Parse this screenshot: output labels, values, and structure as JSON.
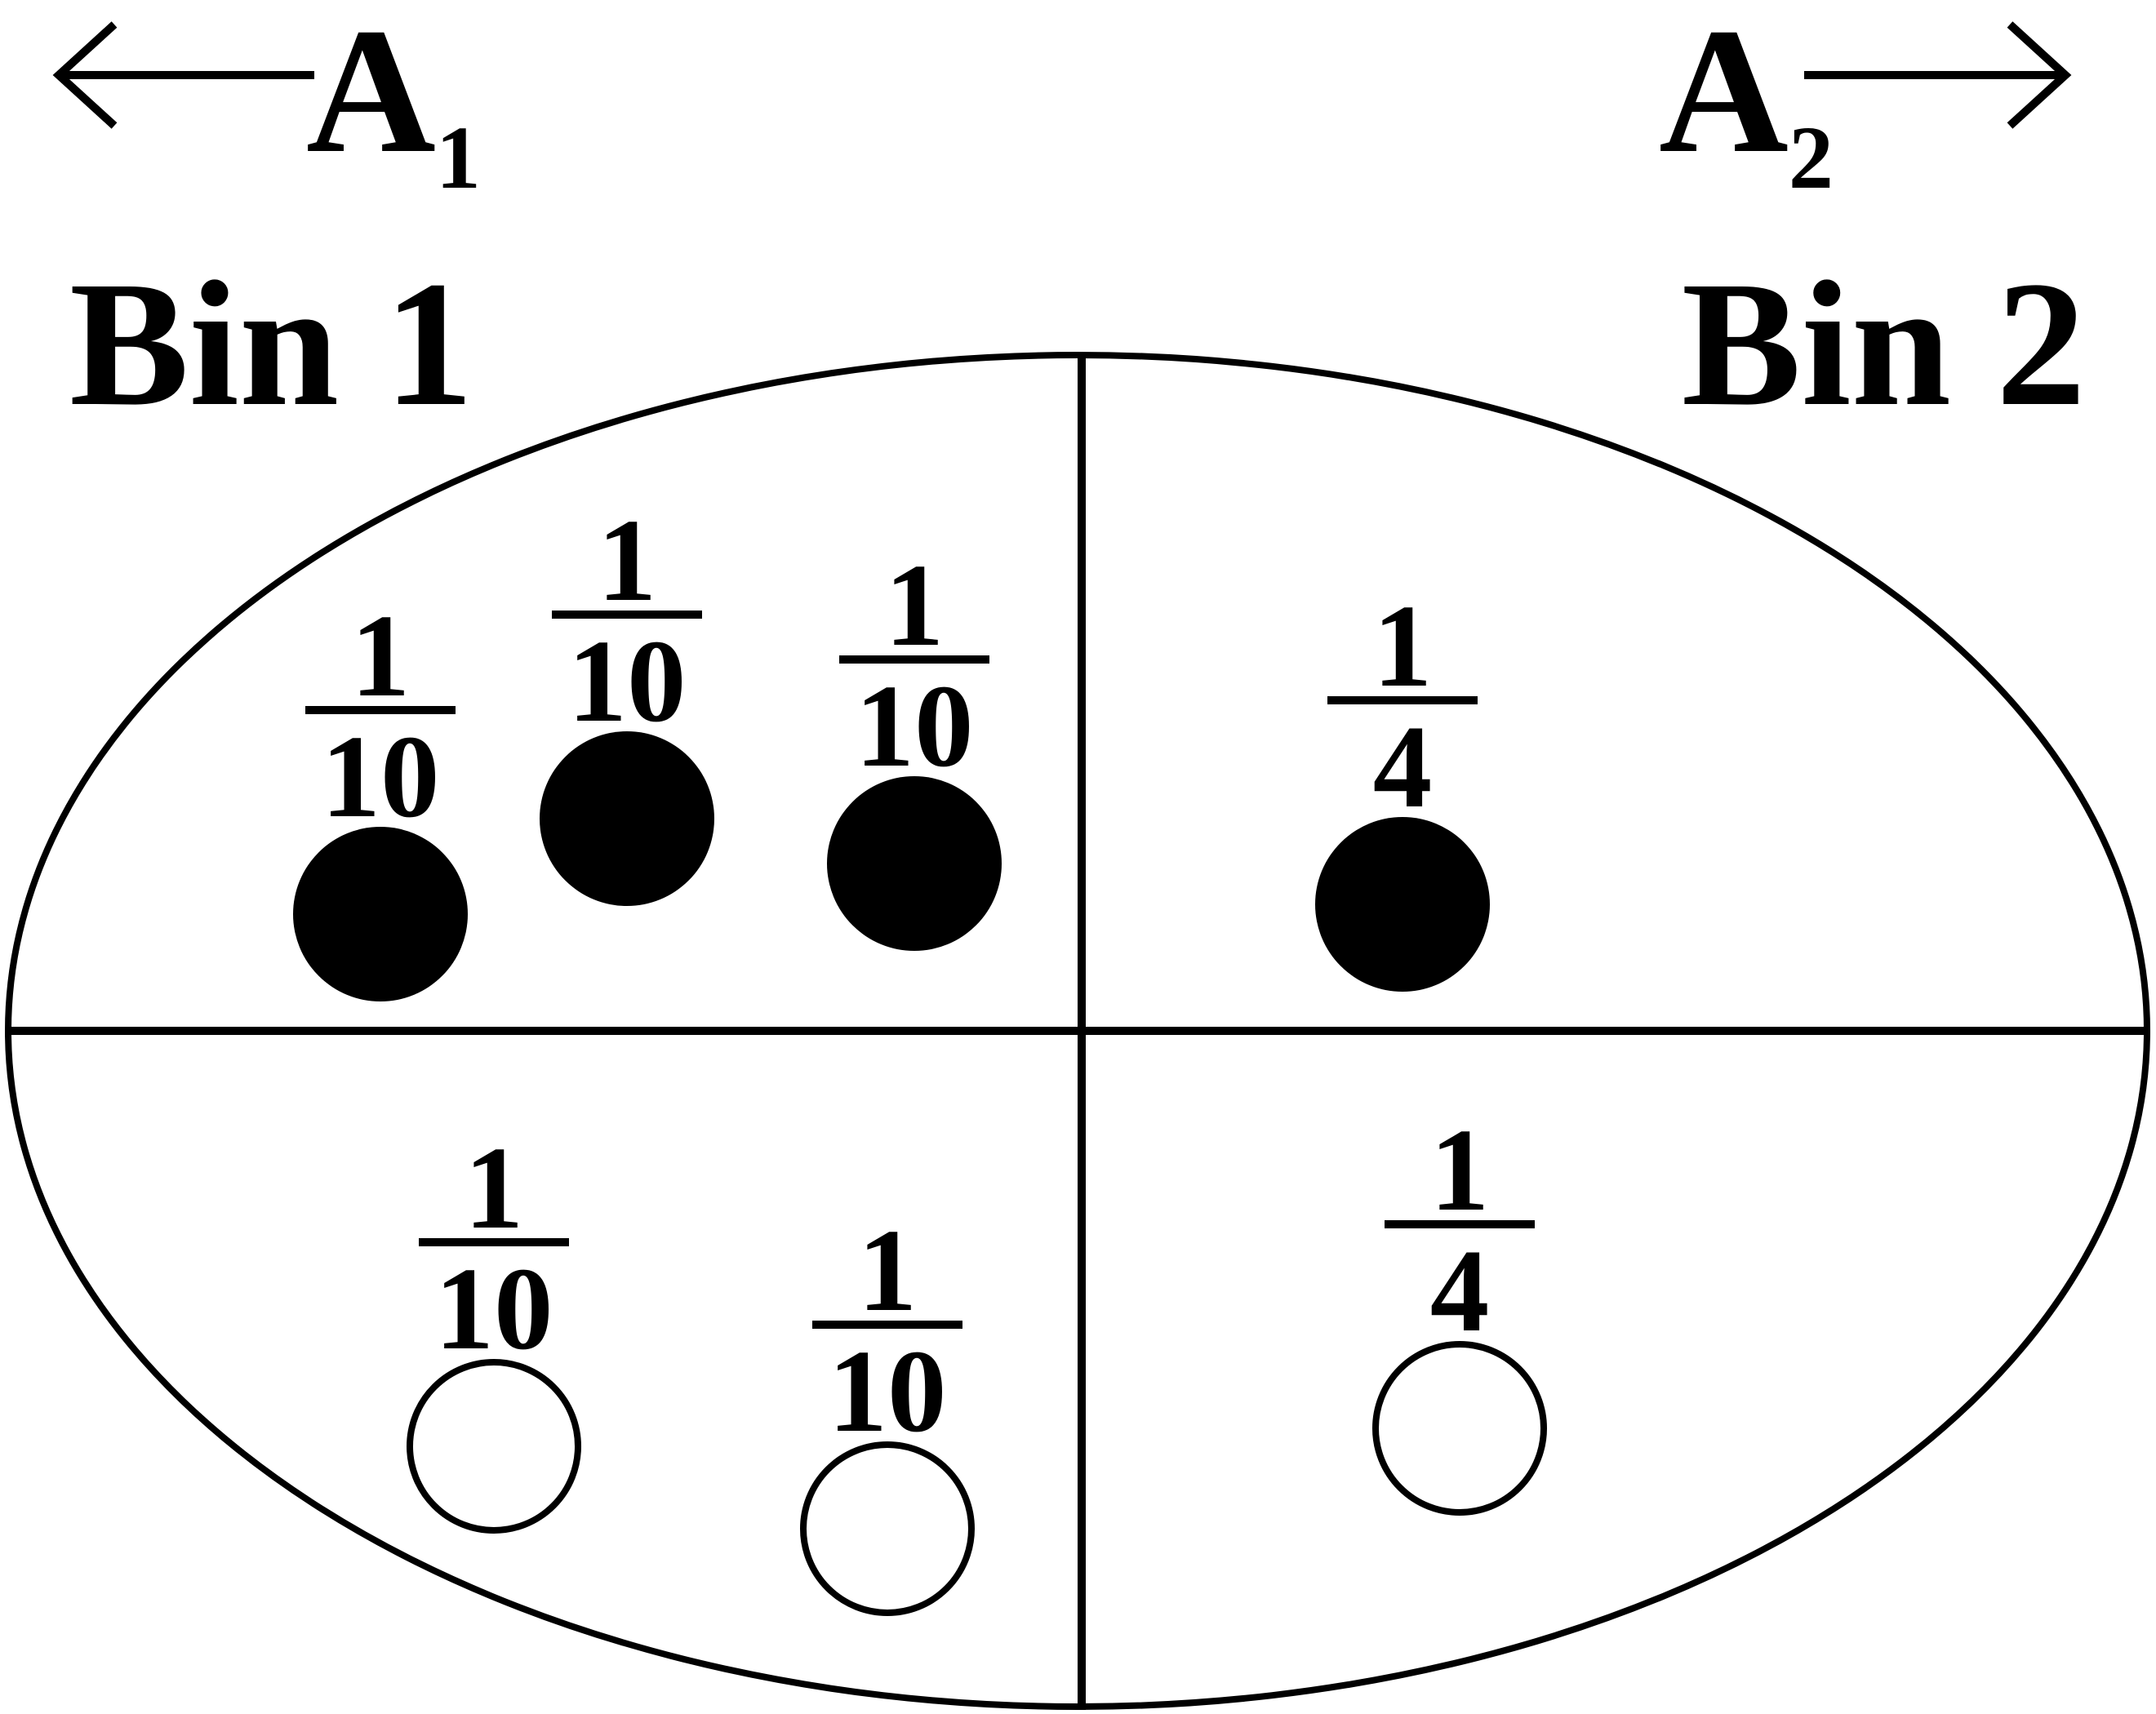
{
  "header": {
    "a1": {
      "letter": "A",
      "subscript": "1"
    },
    "a2": {
      "letter": "A",
      "subscript": "2"
    },
    "bin1": "Bin 1",
    "bin2": "Bin 2"
  },
  "colors": {
    "ink": "#000000",
    "paper": "#ffffff"
  },
  "items": [
    {
      "bin": 1,
      "row": "upper",
      "filled": true,
      "numerator": "1",
      "denominator": "10"
    },
    {
      "bin": 1,
      "row": "upper",
      "filled": true,
      "numerator": "1",
      "denominator": "10"
    },
    {
      "bin": 1,
      "row": "upper",
      "filled": true,
      "numerator": "1",
      "denominator": "10"
    },
    {
      "bin": 2,
      "row": "upper",
      "filled": true,
      "numerator": "1",
      "denominator": "4"
    },
    {
      "bin": 1,
      "row": "lower",
      "filled": false,
      "numerator": "1",
      "denominator": "10"
    },
    {
      "bin": 1,
      "row": "lower",
      "filled": false,
      "numerator": "1",
      "denominator": "10"
    },
    {
      "bin": 2,
      "row": "lower",
      "filled": false,
      "numerator": "1",
      "denominator": "4"
    }
  ]
}
